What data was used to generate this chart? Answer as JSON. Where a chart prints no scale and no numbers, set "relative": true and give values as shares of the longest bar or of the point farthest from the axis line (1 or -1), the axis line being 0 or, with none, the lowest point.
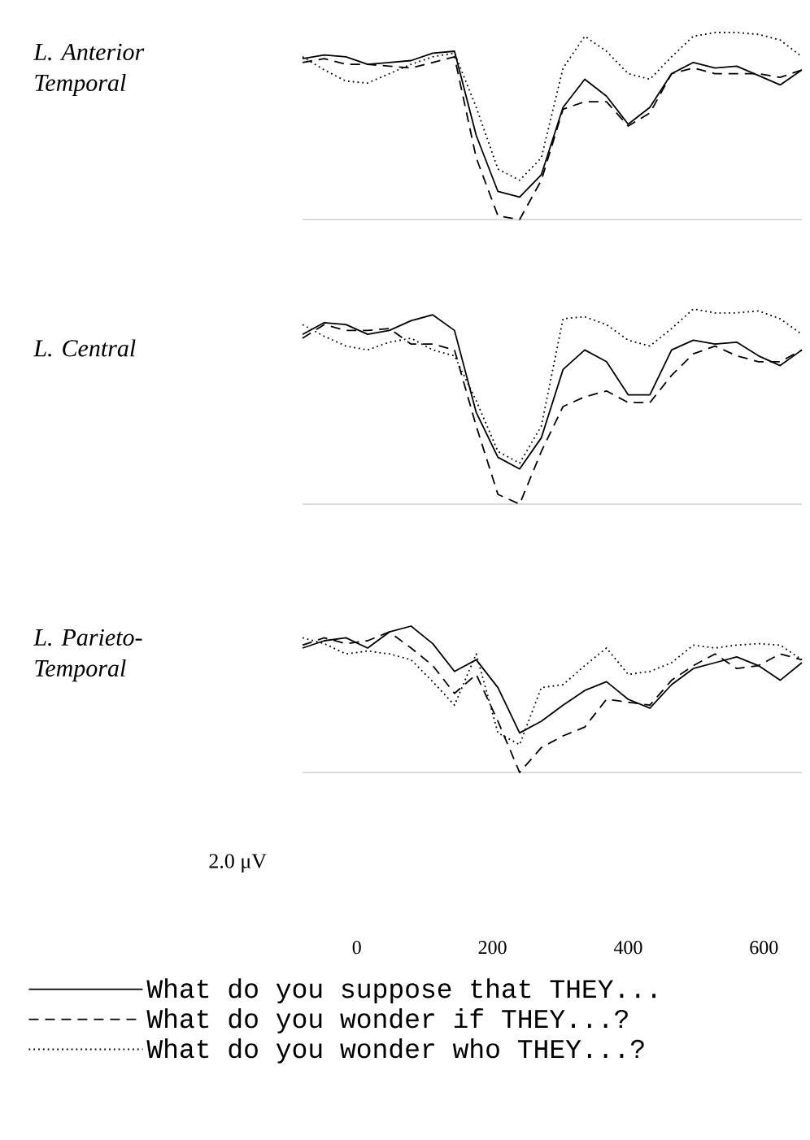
{
  "chart_data": [
    {
      "type": "line",
      "ylabel": "L. Anterior Temporal",
      "relative": true,
      "xlim": [
        -80,
        656
      ],
      "xticks": [
        0,
        200,
        400,
        600
      ],
      "tick_labels": false,
      "marker": "none",
      "x": [
        -80,
        -48,
        -16,
        16,
        48,
        80,
        112,
        144,
        176,
        208,
        240,
        272,
        304,
        336,
        368,
        400,
        432,
        464,
        496,
        528,
        560,
        592,
        624,
        656
      ],
      "series": [
        {
          "color": "#000000",
          "line_style": "solid",
          "values": [
            0.86,
            0.88,
            0.87,
            0.83,
            0.84,
            0.85,
            0.89,
            0.9,
            0.45,
            0.15,
            0.12,
            0.24,
            0.6,
            0.75,
            0.66,
            0.51,
            0.6,
            0.78,
            0.84,
            0.81,
            0.82,
            0.77,
            0.72,
            0.8
          ]
        },
        {
          "color": "#000000",
          "line_style": "dashed",
          "values": [
            0.84,
            0.86,
            0.83,
            0.83,
            0.82,
            0.81,
            0.84,
            0.87,
            0.33,
            0.02,
            0,
            0.21,
            0.59,
            0.63,
            0.63,
            0.5,
            0.57,
            0.78,
            0.81,
            0.78,
            0.78,
            0.78,
            0.76,
            0.8
          ]
        },
        {
          "color": "#000000",
          "line_style": "dotted",
          "values": [
            0.87,
            0.8,
            0.74,
            0.73,
            0.78,
            0.83,
            0.87,
            0.89,
            0.6,
            0.27,
            0.21,
            0.33,
            0.81,
            0.98,
            0.9,
            0.78,
            0.75,
            0.87,
            0.98,
            1,
            1,
            0.99,
            0.96,
            0.87
          ]
        }
      ]
    },
    {
      "type": "line",
      "ylabel": "L. Central",
      "relative": true,
      "xlim": [
        -80,
        656
      ],
      "xticks": [
        0,
        200,
        400,
        600
      ],
      "tick_labels": false,
      "marker": "none",
      "x": [
        -80,
        -48,
        -16,
        16,
        48,
        80,
        112,
        144,
        176,
        208,
        240,
        272,
        304,
        336,
        368,
        400,
        432,
        464,
        496,
        528,
        560,
        592,
        624,
        656
      ],
      "series": [
        {
          "color": "#000000",
          "line_style": "solid",
          "values": [
            0.87,
            0.93,
            0.92,
            0.87,
            0.89,
            0.94,
            0.97,
            0.89,
            0.47,
            0.24,
            0.18,
            0.34,
            0.69,
            0.79,
            0.73,
            0.56,
            0.56,
            0.79,
            0.84,
            0.82,
            0.83,
            0.76,
            0.71,
            0.79
          ]
        },
        {
          "color": "#000000",
          "line_style": "dashed",
          "values": [
            0.85,
            0.92,
            0.89,
            0.89,
            0.9,
            0.82,
            0.82,
            0.79,
            0.4,
            0.05,
            0,
            0.27,
            0.5,
            0.55,
            0.58,
            0.52,
            0.52,
            0.66,
            0.77,
            0.81,
            0.76,
            0.73,
            0.73,
            0.79
          ]
        },
        {
          "color": "#000000",
          "line_style": "dotted",
          "values": [
            0.92,
            0.86,
            0.81,
            0.79,
            0.83,
            0.85,
            0.79,
            0.76,
            0.53,
            0.27,
            0.21,
            0.4,
            0.95,
            0.96,
            0.92,
            0.84,
            0.81,
            0.9,
            1,
            0.98,
            0.98,
            0.99,
            0.95,
            0.87
          ]
        }
      ]
    },
    {
      "type": "line",
      "ylabel": "L. Parieto-Temporal",
      "relative": true,
      "xlim": [
        -80,
        656
      ],
      "xticks": [
        0,
        200,
        400,
        600
      ],
      "tick_labels": "x",
      "marker": "none",
      "legend": "bottom",
      "annotations": [
        "2.0 μV"
      ],
      "x": [
        -80,
        -48,
        -16,
        16,
        48,
        80,
        112,
        144,
        176,
        208,
        240,
        272,
        304,
        336,
        368,
        400,
        432,
        464,
        496,
        528,
        560,
        592,
        624,
        656
      ],
      "series": [
        {
          "name": "What do you suppose that THEY...",
          "color": "#000000",
          "line_style": "solid",
          "values": [
            0.85,
            0.9,
            0.92,
            0.85,
            0.96,
            1,
            0.88,
            0.69,
            0.77,
            0.58,
            0.27,
            0.35,
            0.46,
            0.56,
            0.62,
            0.5,
            0.44,
            0.6,
            0.71,
            0.75,
            0.79,
            0.73,
            0.63,
            0.75
          ]
        },
        {
          "name": "What do you wonder if THEY...?",
          "color": "#000000",
          "line_style": "dashed",
          "values": [
            0.87,
            0.92,
            0.88,
            0.9,
            0.96,
            0.85,
            0.73,
            0.54,
            0.67,
            0.35,
            0,
            0.17,
            0.25,
            0.31,
            0.5,
            0.48,
            0.46,
            0.63,
            0.73,
            0.81,
            0.71,
            0.73,
            0.81,
            0.77
          ]
        },
        {
          "name": "What do you wonder who THEY...?",
          "color": "#000000",
          "line_style": "dotted",
          "values": [
            0.92,
            0.88,
            0.81,
            0.83,
            0.81,
            0.77,
            0.62,
            0.46,
            0.81,
            0.27,
            0.19,
            0.58,
            0.6,
            0.73,
            0.85,
            0.67,
            0.69,
            0.75,
            0.87,
            0.85,
            0.87,
            0.88,
            0.87,
            0.77
          ]
        }
      ]
    }
  ]
}
